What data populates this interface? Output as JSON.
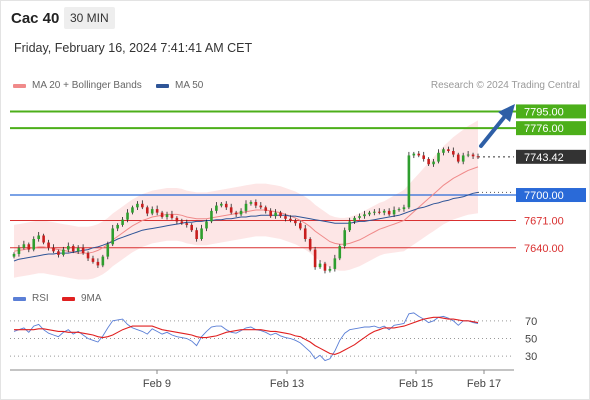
{
  "header": {
    "instrument": "Cac 40",
    "timeframe": "30 MIN",
    "datetime": "Friday, February 16, 2024 7:41:41 AM CET"
  },
  "legend": {
    "bollinger": {
      "label": "MA 20 + Bollinger Bands",
      "color": "#f08a8a"
    },
    "ma50": {
      "label": "MA 50",
      "color": "#2f5597"
    }
  },
  "credit": "Research © 2024 Trading Central",
  "rsi_legend": {
    "rsi": {
      "label": "RSI",
      "color": "#5b7fd6"
    },
    "ma9": {
      "label": "9MA",
      "color": "#e02020"
    }
  },
  "chart_data": [
    {
      "type": "candlestick",
      "ylim": [
        7600,
        7808
      ],
      "x_ticks": [
        "Feb 9",
        "Feb 13",
        "Feb 15",
        "Feb 17"
      ],
      "levels": [
        {
          "value": 7795.0,
          "label": "7795.00",
          "color": "#4caf1a",
          "style": "resistance"
        },
        {
          "value": 7776.0,
          "label": "7776.00",
          "color": "#4caf1a",
          "style": "resistance"
        },
        {
          "value": 7743.42,
          "label": "7743.42",
          "color": "#333333",
          "style": "last-price"
        },
        {
          "value": 7700.0,
          "label": "7700.00",
          "color": "#2a6ad8",
          "style": "pivot"
        },
        {
          "value": 7671.0,
          "label": "7671.00",
          "color": "#d93030",
          "style": "support"
        },
        {
          "value": 7640.0,
          "label": "7640.00",
          "color": "#d93030",
          "style": "support"
        }
      ],
      "closes": [
        7633,
        7640,
        7644,
        7638,
        7650,
        7654,
        7646,
        7640,
        7636,
        7632,
        7638,
        7642,
        7636,
        7640,
        7634,
        7628,
        7624,
        7620,
        7630,
        7644,
        7662,
        7666,
        7672,
        7680,
        7686,
        7690,
        7686,
        7679,
        7684,
        7680,
        7675,
        7678,
        7674,
        7670,
        7668,
        7666,
        7660,
        7650,
        7662,
        7670,
        7682,
        7688,
        7690,
        7686,
        7680,
        7678,
        7682,
        7690,
        7692,
        7688,
        7686,
        7682,
        7676,
        7680,
        7676,
        7673,
        7671,
        7668,
        7662,
        7650,
        7638,
        7618,
        7622,
        7614,
        7616,
        7628,
        7642,
        7660,
        7670,
        7674,
        7676,
        7678,
        7680,
        7681,
        7680,
        7682,
        7678,
        7683,
        7684,
        7686,
        7745,
        7747,
        7745,
        7741,
        7735,
        7738,
        7748,
        7752,
        7750,
        7746,
        7738,
        7745,
        7746,
        7744,
        7743
      ],
      "bollinger_mid": [
        7636,
        7637,
        7638,
        7639,
        7640,
        7641,
        7641,
        7640,
        7639,
        7638,
        7637,
        7636,
        7635,
        7634,
        7634,
        7634,
        7635,
        7637,
        7640,
        7644,
        7649,
        7653,
        7657,
        7661,
        7665,
        7668,
        7671,
        7673,
        7675,
        7676,
        7677,
        7678,
        7678,
        7678,
        7677,
        7675,
        7674,
        7673,
        7673,
        7673,
        7674,
        7675,
        7676,
        7677,
        7678,
        7679,
        7680,
        7681,
        7682,
        7683,
        7683,
        7683,
        7682,
        7681,
        7680,
        7678,
        7676,
        7674,
        7671,
        7668,
        7664,
        7659,
        7655,
        7651,
        7647,
        7645,
        7644,
        7644,
        7645,
        7647,
        7649,
        7652,
        7655,
        7658,
        7661,
        7663,
        7665,
        7667,
        7669,
        7671,
        7676,
        7681,
        7686,
        7691,
        7696,
        7701,
        7706,
        7711,
        7715,
        7719,
        7722,
        7725,
        7728,
        7730,
        7732
      ],
      "bollinger_width": 30,
      "ma50": [
        7625,
        7627,
        7628,
        7629,
        7630,
        7631,
        7632,
        7633,
        7633,
        7634,
        7634,
        7634,
        7635,
        7636,
        7637,
        7638,
        7640,
        7641,
        7643,
        7645,
        7647,
        7650,
        7652,
        7654,
        7656,
        7658,
        7660,
        7661,
        7662,
        7663,
        7664,
        7665,
        7666,
        7667,
        7668,
        7669,
        7669,
        7670,
        7670,
        7671,
        7671,
        7672,
        7672,
        7673,
        7673,
        7674,
        7675,
        7675,
        7676,
        7676,
        7677,
        7677,
        7677,
        7677,
        7677,
        7677,
        7676,
        7676,
        7675,
        7674,
        7673,
        7672,
        7671,
        7670,
        7669,
        7668,
        7668,
        7668,
        7668,
        7669,
        7670,
        7670,
        7671,
        7672,
        7673,
        7674,
        7675,
        7676,
        7677,
        7679,
        7681,
        7683,
        7685,
        7686,
        7688,
        7690,
        7691,
        7693,
        7694,
        7696,
        7697,
        7698,
        7700,
        7702,
        7703
      ]
    },
    {
      "type": "line",
      "ylim": [
        20,
        80
      ],
      "y_ticks": [
        70,
        50,
        30
      ],
      "series": [
        {
          "name": "RSI",
          "color": "#5b7fd6",
          "values": [
            58,
            60,
            62,
            57,
            64,
            66,
            60,
            56,
            54,
            52,
            57,
            60,
            55,
            58,
            54,
            50,
            48,
            46,
            53,
            62,
            70,
            71,
            72,
            66,
            62,
            60,
            58,
            55,
            61,
            58,
            55,
            57,
            54,
            52,
            51,
            50,
            47,
            42,
            52,
            58,
            63,
            64,
            64,
            60,
            57,
            56,
            59,
            62,
            63,
            60,
            59,
            57,
            54,
            56,
            53,
            51,
            50,
            48,
            45,
            40,
            35,
            27,
            31,
            25,
            27,
            36,
            48,
            56,
            60,
            61,
            62,
            63,
            63,
            64,
            62,
            64,
            60,
            65,
            66,
            67,
            78,
            79,
            75,
            72,
            68,
            70,
            74,
            75,
            73,
            70,
            65,
            70,
            70,
            68,
            67
          ]
        },
        {
          "name": "9MA",
          "color": "#e02020",
          "values": [
            60,
            60,
            60,
            60,
            60,
            61,
            61,
            60,
            59,
            58,
            58,
            57,
            57,
            57,
            56,
            55,
            54,
            52,
            51,
            52,
            54,
            57,
            60,
            62,
            64,
            64,
            64,
            64,
            64,
            62,
            60,
            59,
            58,
            57,
            56,
            55,
            54,
            52,
            51,
            51,
            52,
            53,
            55,
            57,
            58,
            59,
            60,
            60,
            60,
            60,
            60,
            59,
            58,
            58,
            57,
            56,
            55,
            53,
            52,
            49,
            46,
            42,
            39,
            36,
            33,
            32,
            34,
            37,
            40,
            43,
            47,
            51,
            55,
            58,
            60,
            62,
            62,
            62,
            63,
            64,
            66,
            68,
            70,
            72,
            73,
            74,
            74,
            73,
            72,
            72,
            71,
            70,
            70,
            69,
            68
          ]
        }
      ]
    }
  ]
}
